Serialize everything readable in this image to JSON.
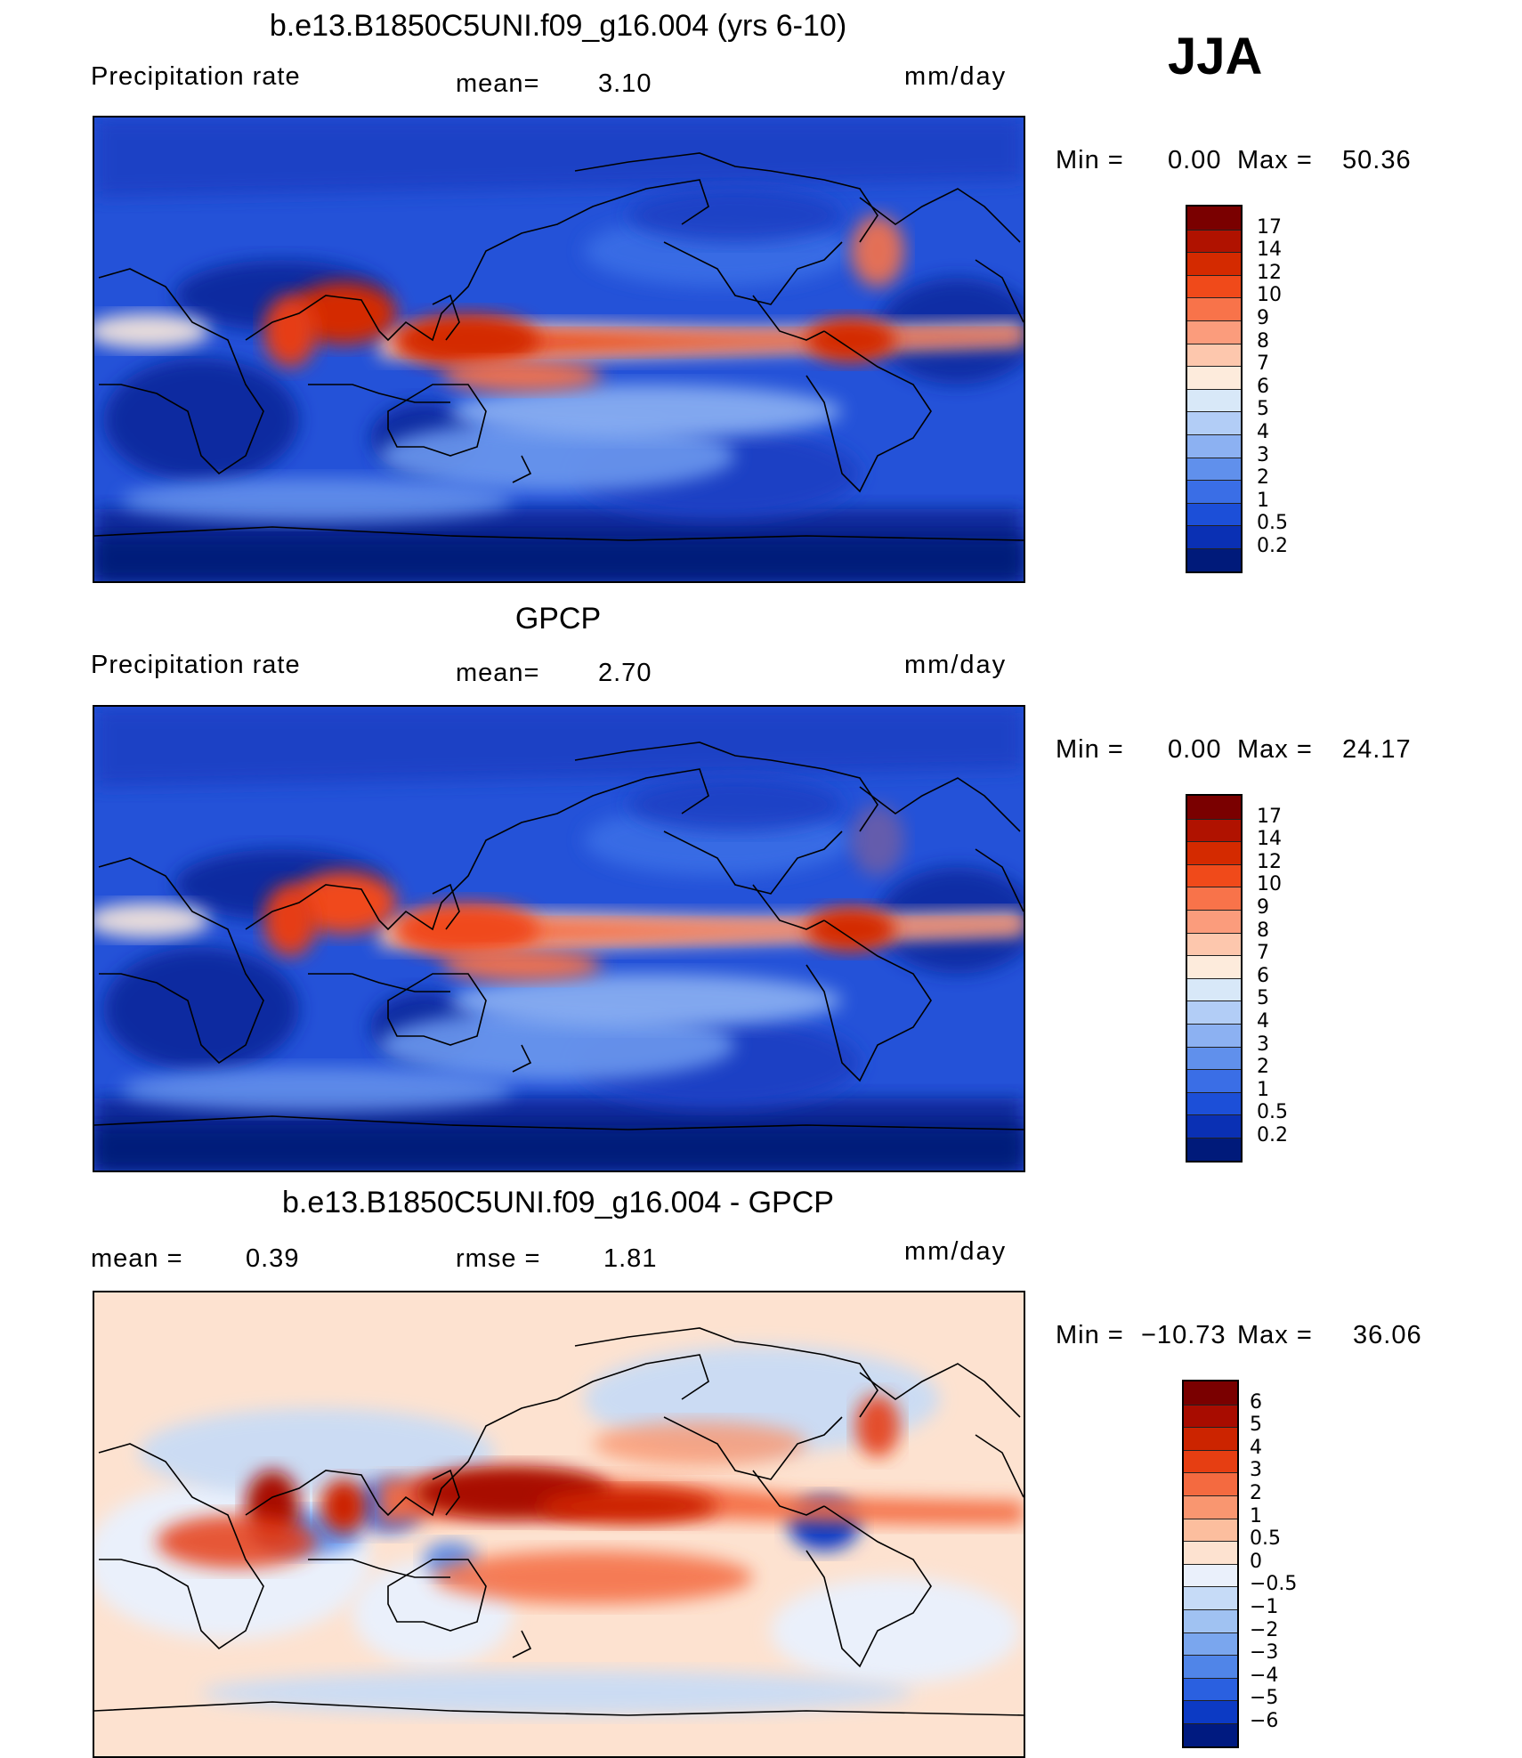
{
  "season": "JJA",
  "panels": [
    {
      "title": "b.e13.B1850C5UNI.f09_g16.004 (yrs 6-10)",
      "left_label": "Precipitation rate",
      "stat1": "mean=",
      "stat1_value": "3.10",
      "units": "mm/day",
      "min_label": "Min =",
      "min_value": "0.00",
      "max_label": "Max =",
      "max_value": "50.36",
      "colorbar": {
        "levels": [
          "17",
          "14",
          "12",
          "10",
          "9",
          "8",
          "7",
          "6",
          "5",
          "4",
          "3",
          "2",
          "1",
          "0.5",
          "0.2"
        ],
        "colors": [
          "#7a0000",
          "#b01200",
          "#d42a00",
          "#f04a1a",
          "#f8734a",
          "#fb9c7c",
          "#fdc7ad",
          "#fdebdc",
          "#d8e8f8",
          "#b2cdf6",
          "#8cb1f2",
          "#6090ec",
          "#3a6ee6",
          "#1c4fd8",
          "#0a30b4",
          "#001a7a"
        ]
      }
    },
    {
      "title": "GPCP",
      "left_label": "Precipitation rate",
      "stat1": "mean=",
      "stat1_value": "2.70",
      "units": "mm/day",
      "min_label": "Min =",
      "min_value": "0.00",
      "max_label": "Max =",
      "max_value": "24.17",
      "colorbar": {
        "levels": [
          "17",
          "14",
          "12",
          "10",
          "9",
          "8",
          "7",
          "6",
          "5",
          "4",
          "3",
          "2",
          "1",
          "0.5",
          "0.2"
        ],
        "colors": [
          "#7a0000",
          "#b01200",
          "#d42a00",
          "#f04a1a",
          "#f8734a",
          "#fb9c7c",
          "#fdc7ad",
          "#fdebdc",
          "#d8e8f8",
          "#b2cdf6",
          "#8cb1f2",
          "#6090ec",
          "#3a6ee6",
          "#1c4fd8",
          "#0a30b4",
          "#001a7a"
        ]
      }
    },
    {
      "title": "b.e13.B1850C5UNI.f09_g16.004 - GPCP",
      "left_label": "mean =",
      "left_value": "0.39",
      "stat1": "rmse =",
      "stat1_value": "1.81",
      "units": "mm/day",
      "min_label": "Min =",
      "min_value": "−10.73",
      "max_label": "Max =",
      "max_value": "36.06",
      "colorbar": {
        "levels": [
          "6",
          "5",
          "4",
          "3",
          "2",
          "1",
          "0.5",
          "0",
          "−0.5",
          "−1",
          "−2",
          "−3",
          "−4",
          "−5",
          "−6"
        ],
        "colors": [
          "#7a0000",
          "#a80c00",
          "#cc2400",
          "#e63e12",
          "#f46a40",
          "#f99670",
          "#fcbe9e",
          "#fde2d0",
          "#eaf0fb",
          "#c6dbf7",
          "#a0c2f2",
          "#7aa6ee",
          "#5085e8",
          "#2a60e0",
          "#0c3ac4",
          "#001a80"
        ]
      }
    }
  ]
}
